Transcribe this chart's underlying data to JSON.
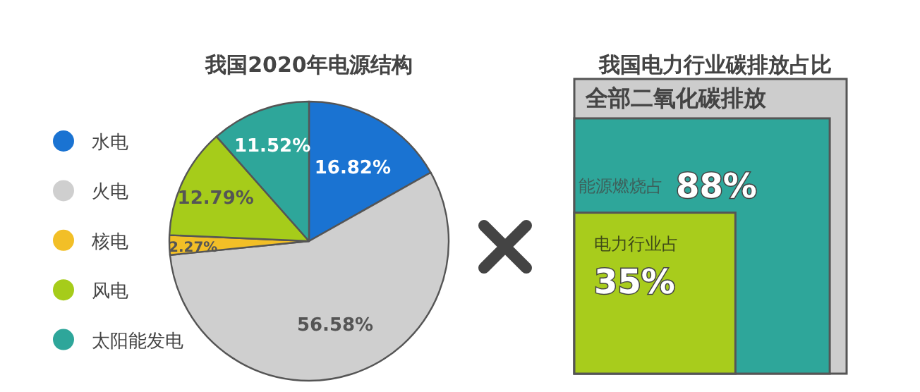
{
  "chart_data": [
    {
      "type": "pie",
      "title": "我国2020年电源结构",
      "categories": [
        "水电",
        "火电",
        "核电",
        "风电",
        "太阳能发电"
      ],
      "values": [
        16.82,
        56.58,
        2.27,
        12.79,
        11.52
      ],
      "colors": [
        "#1a73d2",
        "#cfcfcf",
        "#f2bf27",
        "#a6cc1a",
        "#2ea69a"
      ],
      "value_labels": [
        "16.82%",
        "56.58%",
        "2.27%",
        "12.79%",
        "11.52%"
      ],
      "legend": "left"
    },
    {
      "type": "other",
      "title": "我国电力行业碳排放占比",
      "categories": [
        "全部二氧化碳排放",
        "能源燃烧占",
        "电力行业占"
      ],
      "values": [
        null,
        88,
        35
      ],
      "value_labels": [
        null,
        "88%",
        "35%"
      ],
      "colors": [
        "#cdcdcd",
        "#2ea69a",
        "#a8cc1c"
      ]
    }
  ]
}
